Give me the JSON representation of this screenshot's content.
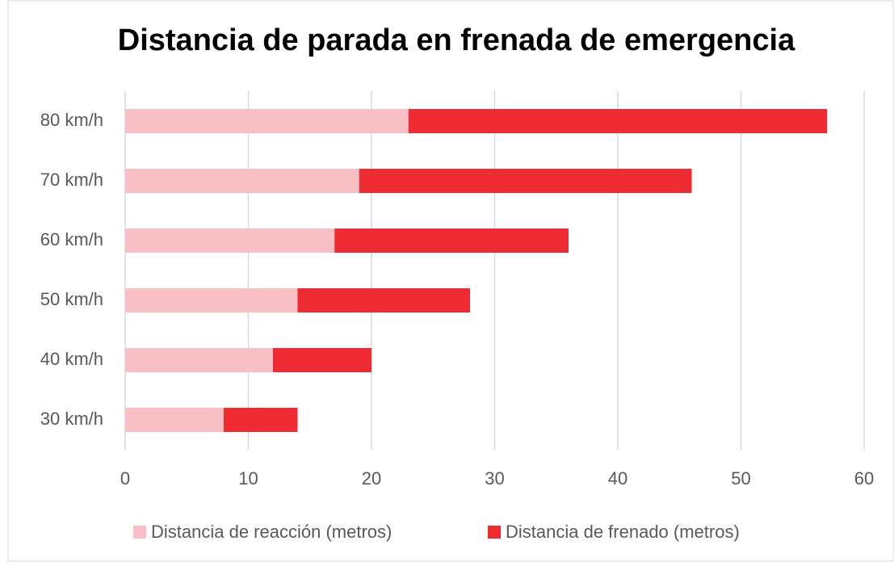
{
  "chart_data": {
    "type": "stacked-barh",
    "title": "Distancia de parada en frenada de emergencia",
    "categories": [
      "30 km/h",
      "40 km/h",
      "50 km/h",
      "60 km/h",
      "70 km/h",
      "80 km/h"
    ],
    "series": [
      {
        "name": "Distancia de reacción (metros)",
        "color": "#f8c0c4",
        "values": [
          8,
          12,
          14,
          17,
          19,
          23
        ]
      },
      {
        "name": "Distancia de frenado (metros)",
        "color": "#ee2a32",
        "values": [
          6,
          8,
          14,
          19,
          27,
          34
        ]
      }
    ],
    "xlim": [
      0,
      60
    ],
    "xticks": [
      0,
      10,
      20,
      30,
      40,
      50,
      60
    ],
    "grid": true,
    "legend": "bottom"
  }
}
